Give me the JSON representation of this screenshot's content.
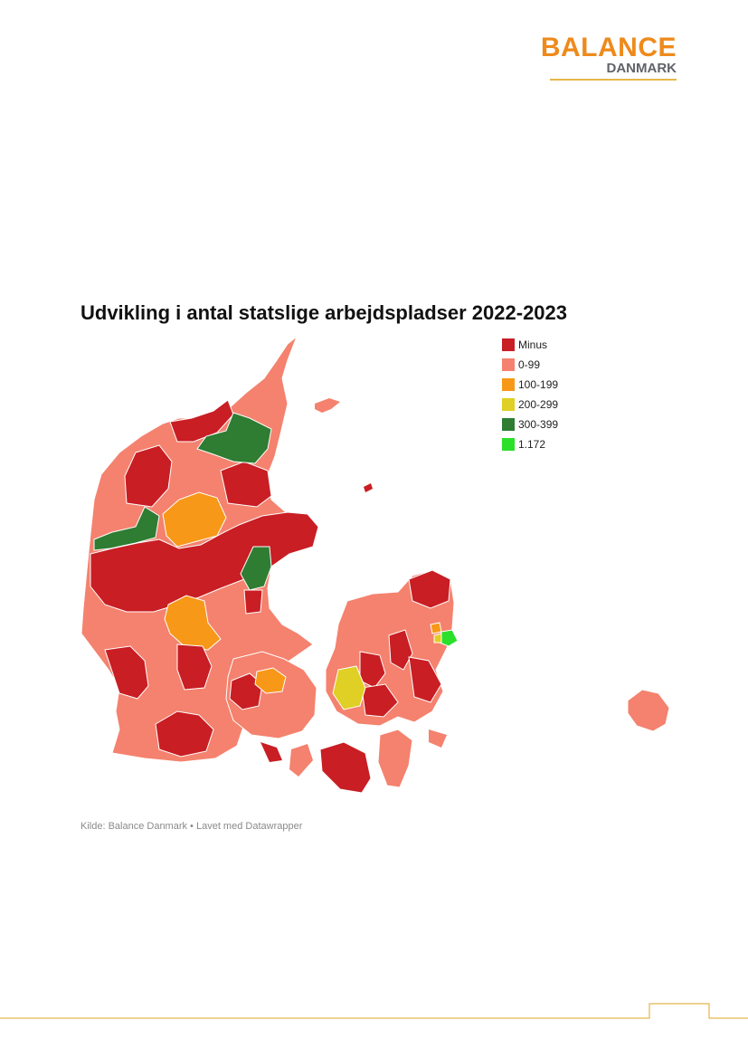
{
  "logo": {
    "title": "BALANCE",
    "subtitle": "DANMARK"
  },
  "map": {
    "title": "Udvikling i antal statslige arbejdspladser 2022-2023",
    "source": "Kilde: Balance Danmark • Lavet med Datawrapper",
    "legend": [
      {
        "label": "Minus",
        "color": "#c81e24"
      },
      {
        "label": "0-99",
        "color": "#f4826e"
      },
      {
        "label": "100-199",
        "color": "#f79818"
      },
      {
        "label": "200-299",
        "color": "#e0cf24"
      },
      {
        "label": "300-399",
        "color": "#2e7d32"
      },
      {
        "label": "1.172",
        "color": "#2be02b"
      }
    ]
  },
  "colors": {
    "brand_orange": "#ee8a1c",
    "brand_gray": "#5f6368",
    "gold_rule": "#e5b64a"
  }
}
